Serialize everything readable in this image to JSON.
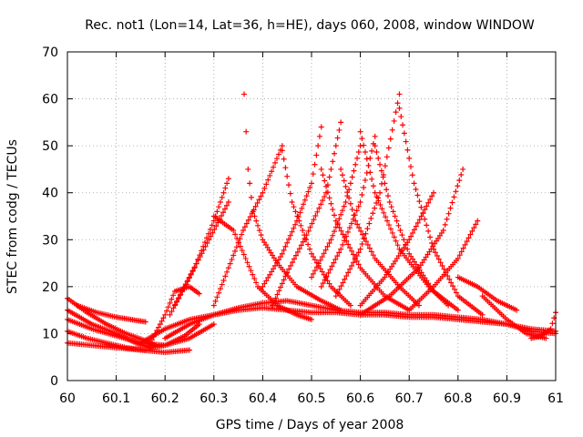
{
  "chart_data": {
    "type": "scatter",
    "title": "Rec. not1 (Lon=14, Lat=36, h=HE), days 060, 2008, window WINDOW",
    "xlabel": "GPS time / Days of year 2008",
    "ylabel": "STEC from codg / TECUs",
    "xlim": [
      60,
      61
    ],
    "ylim": [
      0,
      70
    ],
    "xticks": [
      60,
      60.1,
      60.2,
      60.3,
      60.4,
      60.5,
      60.6,
      60.7,
      60.8,
      60.9,
      61
    ],
    "xtick_labels": [
      "60",
      "60.1",
      "60.2",
      "60.3",
      "60.4",
      "60.5",
      "60.6",
      "60.7",
      "60.8",
      "60.9",
      "61"
    ],
    "yticks": [
      0,
      10,
      20,
      30,
      40,
      50,
      60,
      70
    ],
    "ytick_labels": [
      "0",
      "10",
      "20",
      "30",
      "40",
      "50",
      "60",
      "70"
    ],
    "grid": true,
    "marker": "+",
    "color": "#ff0000",
    "series": [
      {
        "x": [
          60.0,
          60.04,
          60.08,
          60.12,
          60.16,
          60.18
        ],
        "y": [
          17.5,
          14.5,
          12.0,
          10.0,
          8.5,
          7.5
        ]
      },
      {
        "x": [
          60.0,
          60.05,
          60.1,
          60.14,
          60.17,
          60.2,
          60.24,
          60.27
        ],
        "y": [
          15.0,
          12.0,
          10.0,
          8.0,
          7.0,
          7.5,
          9.5,
          12.0
        ]
      },
      {
        "x": [
          60.0,
          60.05,
          60.1,
          60.15,
          60.2,
          60.25,
          60.3
        ],
        "y": [
          13.0,
          11.0,
          9.5,
          8.0,
          7.5,
          9.0,
          12.0
        ]
      },
      {
        "x": [
          60.0,
          60.04,
          60.08,
          60.12,
          60.16
        ],
        "y": [
          10.5,
          9.0,
          8.0,
          7.0,
          6.5
        ]
      },
      {
        "x": [
          60.0,
          60.05,
          60.1,
          60.15,
          60.2,
          60.25
        ],
        "y": [
          8.0,
          7.5,
          7.0,
          6.5,
          6.0,
          6.5
        ]
      },
      {
        "x": [
          60.02,
          60.06,
          60.1,
          60.13,
          60.16
        ],
        "y": [
          16.0,
          14.5,
          13.5,
          13.0,
          12.5
        ]
      },
      {
        "x": [
          60.17,
          60.2,
          60.22,
          60.25,
          60.27
        ],
        "y": [
          8.0,
          14.0,
          19.0,
          20.0,
          18.5
        ]
      },
      {
        "x": [
          60.15,
          60.2,
          60.25,
          60.3,
          60.35,
          60.4,
          60.45,
          60.5,
          60.55,
          60.6,
          60.65,
          60.7,
          60.75,
          60.8,
          60.85,
          60.9,
          60.95,
          61.0
        ],
        "y": [
          8.0,
          11.0,
          13.0,
          14.0,
          15.0,
          15.5,
          15.0,
          14.5,
          14.5,
          14.0,
          14.0,
          13.5,
          13.5,
          13.0,
          12.5,
          12.0,
          10.5,
          10.0
        ]
      },
      {
        "x": [
          60.2,
          60.25,
          60.3,
          60.35,
          60.4,
          60.45,
          60.5,
          60.55,
          60.6,
          60.65,
          60.7,
          60.75,
          60.8,
          60.85,
          60.9,
          60.95,
          61.0
        ],
        "y": [
          9.0,
          12.0,
          14.0,
          15.5,
          16.5,
          17.0,
          16.0,
          15.0,
          14.5,
          14.5,
          14.0,
          14.0,
          13.5,
          13.0,
          12.0,
          11.0,
          10.5
        ]
      },
      {
        "x": [
          60.95,
          60.97,
          60.99,
          61.0
        ],
        "y": [
          9.0,
          9.5,
          11.0,
          14.5
        ]
      },
      {
        "x": [
          60.21,
          60.25,
          60.29,
          60.33
        ],
        "y": [
          14.0,
          22.0,
          30.0,
          38.0
        ]
      },
      {
        "x": [
          60.22,
          60.26,
          60.3,
          60.33
        ],
        "y": [
          16.0,
          24.0,
          34.0,
          43.0
        ]
      },
      {
        "x": [
          60.3,
          60.34,
          60.39,
          60.43,
          60.47,
          60.5
        ],
        "y": [
          35.0,
          32.0,
          20.0,
          16.0,
          14.0,
          13.0
        ]
      },
      {
        "x": [
          60.362,
          60.37,
          60.38,
          60.4,
          60.43,
          60.47,
          60.52,
          60.56
        ],
        "y": [
          61.0,
          45.0,
          36.0,
          30.0,
          25.0,
          20.0,
          17.0,
          15.0
        ]
      },
      {
        "x": [
          60.3,
          60.33,
          60.36,
          60.4,
          60.44
        ],
        "y": [
          16.0,
          24.0,
          32.0,
          40.0,
          50.0
        ]
      },
      {
        "x": [
          60.44,
          60.46,
          60.5,
          60.54,
          60.58
        ],
        "y": [
          49.0,
          38.0,
          27.0,
          20.0,
          16.0
        ]
      },
      {
        "x": [
          60.4,
          60.44,
          60.47,
          60.5,
          60.52
        ],
        "y": [
          20.0,
          27.0,
          34.0,
          42.0,
          54.0
        ]
      },
      {
        "x": [
          60.52,
          60.55,
          60.6,
          60.65,
          60.7
        ],
        "y": [
          45.0,
          34.0,
          24.0,
          18.0,
          15.0
        ]
      },
      {
        "x": [
          60.42,
          60.45,
          60.49,
          60.53,
          60.56
        ],
        "y": [
          16.0,
          23.0,
          31.0,
          40.0,
          55.0
        ]
      },
      {
        "x": [
          60.56,
          60.59,
          60.63,
          60.68,
          60.72
        ],
        "y": [
          45.0,
          34.0,
          26.0,
          20.0,
          16.0
        ]
      },
      {
        "x": [
          60.5,
          60.54,
          60.57,
          60.6
        ],
        "y": [
          22.0,
          30.0,
          38.0,
          50.0
        ]
      },
      {
        "x": [
          60.6,
          60.63,
          60.68,
          60.74,
          60.78
        ],
        "y": [
          53.0,
          40.0,
          28.0,
          20.0,
          16.0
        ]
      },
      {
        "x": [
          60.52,
          60.56,
          60.6,
          60.63
        ],
        "y": [
          20.0,
          28.0,
          38.0,
          52.0
        ]
      },
      {
        "x": [
          60.63,
          60.66,
          60.7,
          60.75,
          60.8
        ],
        "y": [
          50.0,
          38.0,
          27.0,
          19.0,
          15.0
        ]
      },
      {
        "x": [
          60.55,
          60.6,
          60.64,
          60.68
        ],
        "y": [
          18.0,
          28.0,
          40.0,
          61.0
        ]
      },
      {
        "x": [
          60.68,
          60.71,
          60.75,
          60.8,
          60.85
        ],
        "y": [
          58.0,
          42.0,
          28.0,
          18.0,
          14.0
        ]
      },
      {
        "x": [
          60.6,
          60.65,
          60.7,
          60.75
        ],
        "y": [
          16.0,
          22.0,
          30.0,
          40.0
        ]
      },
      {
        "x": [
          60.6,
          60.66,
          60.72,
          60.77,
          60.81
        ],
        "y": [
          14.0,
          18.0,
          24.0,
          32.0,
          45.0
        ]
      },
      {
        "x": [
          60.7,
          60.75,
          60.8,
          60.84
        ],
        "y": [
          15.0,
          20.0,
          26.0,
          34.0
        ]
      },
      {
        "x": [
          60.8,
          60.84,
          60.88,
          60.92
        ],
        "y": [
          22.0,
          20.0,
          17.0,
          15.0
        ]
      },
      {
        "x": [
          60.85,
          60.9,
          60.94,
          60.98
        ],
        "y": [
          18.0,
          13.0,
          10.0,
          9.0
        ]
      }
    ]
  }
}
